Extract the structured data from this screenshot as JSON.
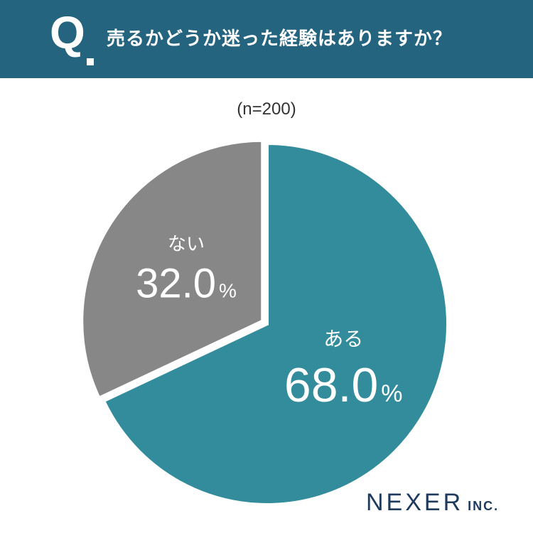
{
  "header": {
    "q_mark": "Q",
    "question": "売るかどうか迷った経験はありますか？"
  },
  "sample_size": "(n=200)",
  "logo": {
    "main": "NEXER",
    "sub": "INC."
  },
  "colors": {
    "header": "#24647f",
    "teal": "#338c9b",
    "gray": "#878787"
  },
  "chart_data": {
    "type": "pie",
    "title": "売るかどうか迷った経験はありますか？",
    "slices": [
      {
        "label": "ある",
        "value": 68.0,
        "display": "68.0",
        "color": "#338c9b"
      },
      {
        "label": "ない",
        "value": 32.0,
        "display": "32.0",
        "color": "#878787"
      }
    ],
    "unit": "%"
  }
}
